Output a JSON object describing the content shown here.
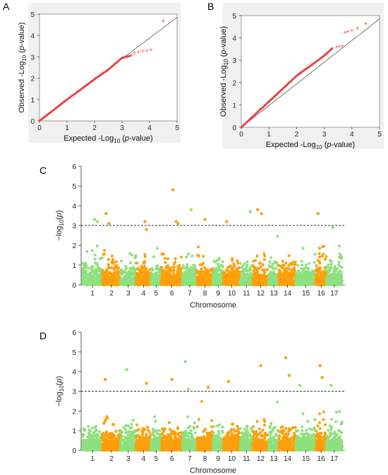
{
  "panels": {
    "A": "A",
    "B": "B",
    "C": "C",
    "D": "D"
  },
  "colors": {
    "qq_point": "#e84545",
    "qq_line": "#555555",
    "manhattan_green": "#8fe07e",
    "manhattan_orange": "#ff9f0a",
    "threshold": "#333333"
  },
  "chart_data": [
    {
      "id": "A",
      "type": "scatter",
      "title": "",
      "xlabel": "Expected -Log10 (p-value)",
      "ylabel": "Observed -Log10 (p-value)",
      "xlim": [
        0,
        5
      ],
      "ylim": [
        0,
        5
      ],
      "xticks": [
        "0",
        "1",
        "2",
        "3",
        "4",
        "5"
      ],
      "yticks": [
        "0",
        "1",
        "2",
        "3",
        "4",
        "5"
      ],
      "diagonal": true,
      "curve": [
        [
          0,
          0
        ],
        [
          1.0,
          1.0
        ],
        [
          2.0,
          1.95
        ],
        [
          2.5,
          2.4
        ],
        [
          3.0,
          2.95
        ],
        [
          3.3,
          3.05
        ]
      ],
      "tail_points": [
        [
          3.35,
          3.1
        ],
        [
          3.45,
          3.2
        ],
        [
          3.6,
          3.25
        ],
        [
          3.75,
          3.3
        ],
        [
          3.9,
          3.3
        ],
        [
          4.05,
          3.35
        ],
        [
          4.5,
          4.7
        ]
      ]
    },
    {
      "id": "B",
      "type": "scatter",
      "title": "",
      "xlabel": "Expected -Log10 (p-value)",
      "ylabel": "Observed -Log10 (p-value)",
      "xlim": [
        0,
        5
      ],
      "ylim": [
        0,
        5
      ],
      "xticks": [
        "0",
        "1",
        "2",
        "3",
        "4",
        "5"
      ],
      "yticks": [
        "0",
        "1",
        "2",
        "3",
        "4",
        "5"
      ],
      "diagonal": true,
      "curve": [
        [
          0,
          0
        ],
        [
          1.0,
          1.15
        ],
        [
          2.0,
          2.3
        ],
        [
          2.5,
          2.75
        ],
        [
          3.0,
          3.2
        ],
        [
          3.3,
          3.55
        ]
      ],
      "tail_points": [
        [
          3.45,
          3.6
        ],
        [
          3.55,
          3.62
        ],
        [
          3.65,
          3.65
        ],
        [
          3.75,
          4.25
        ],
        [
          3.85,
          4.3
        ],
        [
          4.0,
          4.35
        ],
        [
          4.2,
          4.45
        ],
        [
          4.5,
          4.65
        ]
      ]
    },
    {
      "id": "C",
      "type": "scatter",
      "title": "",
      "xlabel": "Chromosome",
      "ylabel": "-log10(p)",
      "ylim": [
        0,
        6
      ],
      "yticks": [
        "0",
        "1",
        "2",
        "3",
        "4",
        "5",
        "6"
      ],
      "threshold": 3,
      "chromosomes": [
        "1",
        "2",
        "3",
        "4",
        "5",
        "6",
        "7",
        "8",
        "9",
        "10",
        "11",
        "12",
        "13",
        "14",
        "15",
        "16",
        "17"
      ],
      "chrom_colors": [
        "green",
        "orange",
        "green",
        "orange",
        "green",
        "orange",
        "green",
        "orange",
        "green",
        "orange",
        "green",
        "orange",
        "green",
        "orange",
        "green",
        "orange",
        "green"
      ],
      "peaks": [
        {
          "chr": 1,
          "pos": 0.6,
          "y": 3.3
        },
        {
          "chr": 1,
          "pos": 0.75,
          "y": 3.2
        },
        {
          "chr": 2,
          "pos": 0.2,
          "y": 3.6
        },
        {
          "chr": 2,
          "pos": 0.35,
          "y": 3.1
        },
        {
          "chr": 4,
          "pos": 0.6,
          "y": 3.2
        },
        {
          "chr": 4,
          "pos": 0.7,
          "y": 2.8
        },
        {
          "chr": 6,
          "pos": 0.55,
          "y": 4.8
        },
        {
          "chr": 6,
          "pos": 0.7,
          "y": 3.2
        },
        {
          "chr": 6,
          "pos": 0.8,
          "y": 3.1
        },
        {
          "chr": 7,
          "pos": 0.6,
          "y": 3.8
        },
        {
          "chr": 8,
          "pos": 0.5,
          "y": 3.3
        },
        {
          "chr": 10,
          "pos": 0.2,
          "y": 3.2
        },
        {
          "chr": 11,
          "pos": 0.8,
          "y": 3.7
        },
        {
          "chr": 12,
          "pos": 0.3,
          "y": 3.8
        },
        {
          "chr": 12,
          "pos": 0.55,
          "y": 3.6
        },
        {
          "chr": 16,
          "pos": 0.2,
          "y": 3.6
        },
        {
          "chr": 17,
          "pos": 0.4,
          "y": 2.9
        }
      ]
    },
    {
      "id": "D",
      "type": "scatter",
      "title": "",
      "xlabel": "Chromosome",
      "ylabel": "-log10(p)",
      "ylim": [
        0,
        6
      ],
      "yticks": [
        "0",
        "1",
        "2",
        "3",
        "4",
        "5",
        "6"
      ],
      "threshold": 3,
      "chromosomes": [
        "1",
        "2",
        "3",
        "4",
        "5",
        "6",
        "7",
        "8",
        "9",
        "10",
        "11",
        "12",
        "13",
        "14",
        "15",
        "16",
        "17"
      ],
      "chrom_colors": [
        "green",
        "orange",
        "green",
        "orange",
        "green",
        "orange",
        "green",
        "orange",
        "green",
        "orange",
        "green",
        "orange",
        "green",
        "orange",
        "green",
        "orange",
        "green"
      ],
      "peaks": [
        {
          "chr": 2,
          "pos": 0.15,
          "y": 3.6
        },
        {
          "chr": 3,
          "pos": 0.4,
          "y": 4.1
        },
        {
          "chr": 4,
          "pos": 0.7,
          "y": 3.4
        },
        {
          "chr": 6,
          "pos": 0.5,
          "y": 3.6
        },
        {
          "chr": 7,
          "pos": 0.2,
          "y": 4.5
        },
        {
          "chr": 7,
          "pos": 0.4,
          "y": 3.1
        },
        {
          "chr": 8,
          "pos": 0.7,
          "y": 3.2
        },
        {
          "chr": 10,
          "pos": 0.3,
          "y": 3.5
        },
        {
          "chr": 12,
          "pos": 0.5,
          "y": 4.3
        },
        {
          "chr": 14,
          "pos": 0.4,
          "y": 4.7
        },
        {
          "chr": 14,
          "pos": 0.6,
          "y": 3.8
        },
        {
          "chr": 15,
          "pos": 0.2,
          "y": 3.3
        },
        {
          "chr": 16,
          "pos": 0.4,
          "y": 4.3
        },
        {
          "chr": 16,
          "pos": 0.6,
          "y": 3.7
        },
        {
          "chr": 17,
          "pos": 0.3,
          "y": 3.3
        }
      ]
    }
  ]
}
